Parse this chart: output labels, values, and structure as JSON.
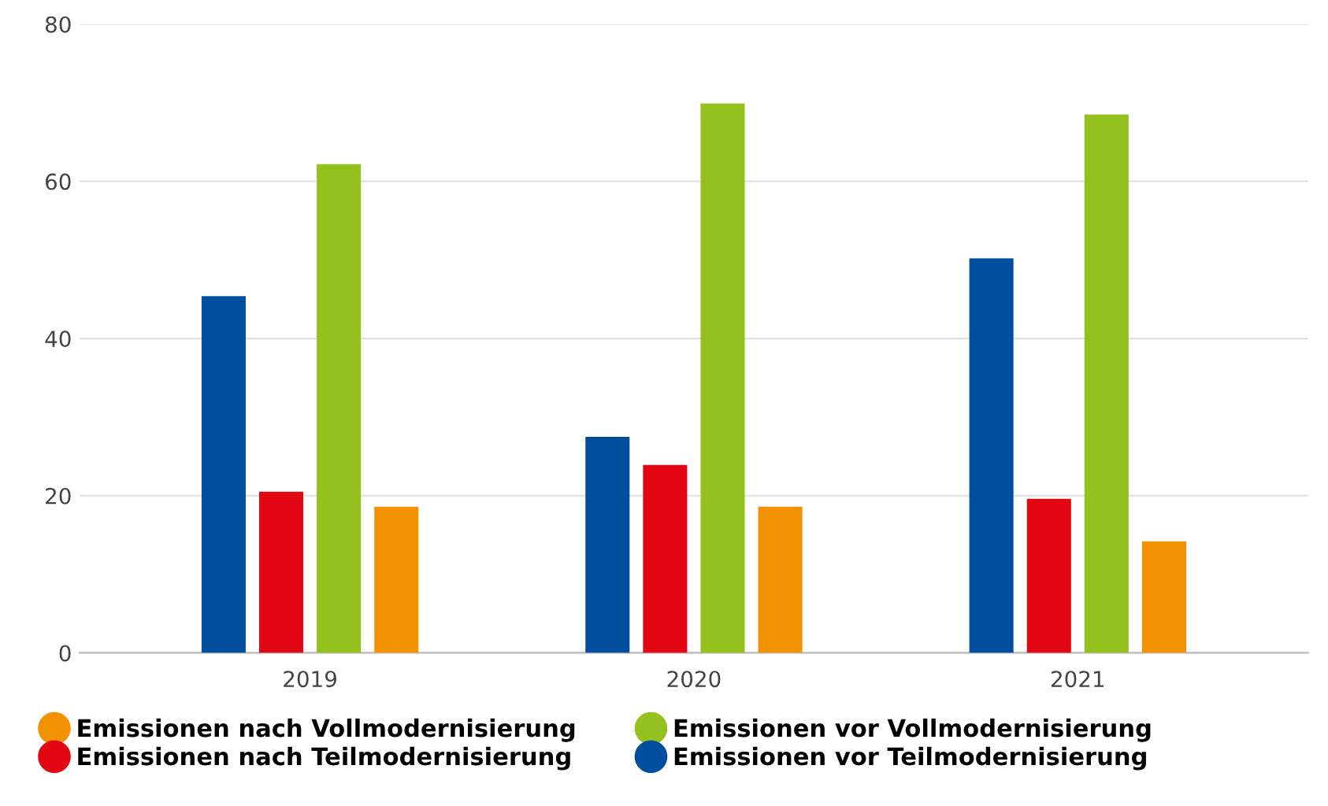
{
  "chart_data": {
    "type": "bar",
    "categories": [
      "2019",
      "2020",
      "2021"
    ],
    "series": [
      {
        "name": "Emissionen vor Teilmodernisierung",
        "color": "#004f9f",
        "values": [
          45.4,
          27.5,
          50.2
        ]
      },
      {
        "name": "Emissionen nach Teilmodernisierung",
        "color": "#e30613",
        "values": [
          20.5,
          23.9,
          19.6
        ]
      },
      {
        "name": "Emissionen vor Vollmodernisierung",
        "color": "#95c11f",
        "values": [
          62.2,
          69.9,
          68.5
        ]
      },
      {
        "name": "Emissionen nach Vollmodernisierung",
        "color": "#f39200",
        "values": [
          18.6,
          18.6,
          14.2
        ]
      }
    ],
    "ylim": [
      0,
      80
    ],
    "yticks": [
      0,
      20,
      40,
      60,
      80
    ],
    "grid": "y",
    "legend": "bottom",
    "marker": "circle"
  }
}
